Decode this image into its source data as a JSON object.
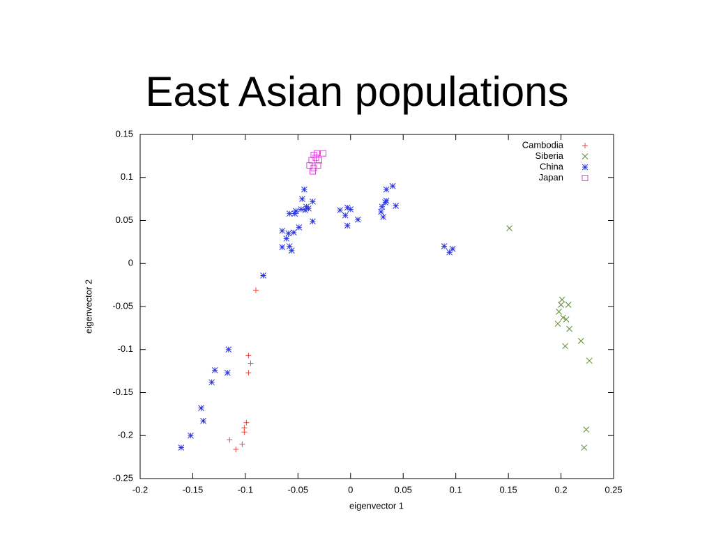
{
  "chart_data": {
    "type": "scatter",
    "title": "East Asian populations",
    "x_label": "eigenvector 1",
    "y_label": "eigenvector 2",
    "xlim": [
      -0.2,
      0.25
    ],
    "ylim": [
      -0.25,
      0.15
    ],
    "xticks": [
      -0.2,
      -0.15,
      -0.1,
      -0.05,
      0,
      0.05,
      0.1,
      0.15,
      0.2,
      0.25
    ],
    "yticks": [
      -0.25,
      -0.2,
      -0.15,
      -0.1,
      -0.05,
      0,
      0.05,
      0.1,
      0.15
    ],
    "grid": false,
    "legend": "top-right",
    "series": [
      {
        "name": "Cambodia",
        "color": "#e8473c",
        "marker": "plus",
        "x": [
          -0.09,
          -0.097,
          -0.095,
          -0.097,
          -0.099,
          -0.101,
          -0.101,
          -0.103,
          -0.115,
          -0.109
        ],
        "values": [
          -0.031,
          -0.107,
          -0.116,
          -0.127,
          -0.185,
          -0.191,
          -0.196,
          -0.21,
          -0.205,
          -0.216
        ]
      },
      {
        "name": "Siberia",
        "color": "#5a8a2e",
        "marker": "cross",
        "x": [
          0.151,
          0.201,
          0.2,
          0.207,
          0.198,
          0.202,
          0.205,
          0.197,
          0.208,
          0.219,
          0.204,
          0.227,
          0.224,
          0.222
        ],
        "values": [
          0.041,
          -0.042,
          -0.048,
          -0.048,
          -0.056,
          -0.063,
          -0.065,
          -0.07,
          -0.076,
          -0.09,
          -0.096,
          -0.113,
          -0.193,
          -0.214
        ]
      },
      {
        "name": "China",
        "color": "#2b35e0",
        "marker": "star",
        "x": [
          -0.161,
          -0.152,
          -0.14,
          -0.142,
          -0.132,
          -0.129,
          -0.117,
          -0.116,
          -0.083,
          -0.065,
          -0.061,
          -0.058,
          -0.056,
          -0.065,
          -0.059,
          -0.054,
          -0.049,
          -0.058,
          -0.053,
          -0.052,
          -0.047,
          -0.043,
          -0.042,
          -0.04,
          -0.036,
          -0.036,
          -0.046,
          -0.044,
          -0.01,
          -0.005,
          -0.003,
          0.0,
          -0.003,
          0.007,
          0.03,
          0.031,
          0.033,
          0.034,
          0.034,
          0.04,
          0.043,
          0.089,
          0.094,
          0.097,
          0.029
        ],
        "values": [
          -0.214,
          -0.2,
          -0.183,
          -0.168,
          -0.138,
          -0.124,
          -0.127,
          -0.1,
          -0.014,
          0.019,
          0.029,
          0.02,
          0.015,
          0.038,
          0.035,
          0.036,
          0.042,
          0.058,
          0.058,
          0.061,
          0.063,
          0.062,
          0.066,
          0.064,
          0.072,
          0.049,
          0.075,
          0.086,
          0.062,
          0.056,
          0.065,
          0.063,
          0.044,
          0.051,
          0.066,
          0.054,
          0.071,
          0.073,
          0.086,
          0.09,
          0.067,
          0.02,
          0.013,
          0.017,
          0.06
        ]
      },
      {
        "name": "Japan",
        "color": "#e040e0",
        "marker": "square",
        "x": [
          -0.035,
          -0.032,
          -0.026,
          -0.037,
          -0.03,
          -0.039,
          -0.035,
          -0.036,
          -0.031,
          -0.033
        ],
        "values": [
          0.126,
          0.128,
          0.128,
          0.12,
          0.12,
          0.114,
          0.111,
          0.107,
          0.114,
          0.123
        ]
      }
    ]
  }
}
